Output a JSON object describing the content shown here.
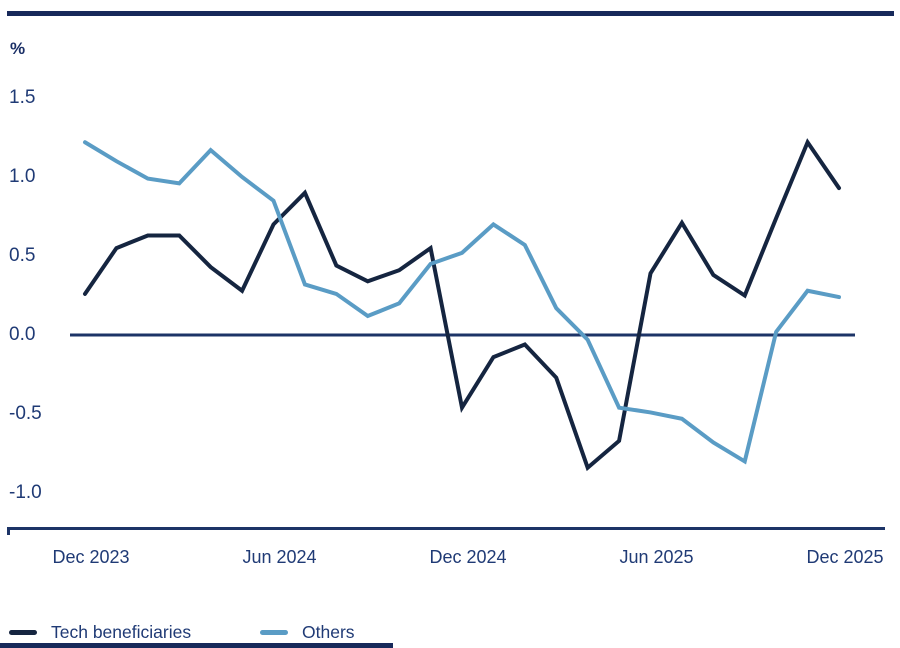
{
  "header": {
    "top_rule_color": "#17295a"
  },
  "chart_data": {
    "type": "line",
    "title": "",
    "y_unit_label": "%",
    "x": [
      "Dec 2023",
      "Jan 2024",
      "Feb 2024",
      "Mar 2024",
      "Apr 2024",
      "May 2024",
      "Jun 2024",
      "Jul 2024",
      "Aug 2024",
      "Sep 2024",
      "Oct 2024",
      "Nov 2024",
      "Dec 2024",
      "Jan 2025",
      "Feb 2025",
      "Mar 2025",
      "Apr 2025",
      "May 2025",
      "Jun 2025",
      "Jul 2025",
      "Aug 2025",
      "Sep 2025",
      "Oct 2025",
      "Nov 2025",
      "Dec 2025"
    ],
    "series": [
      {
        "name": "Tech beneficiaries",
        "color": "#152540",
        "values": [
          0.26,
          0.55,
          0.63,
          0.63,
          0.43,
          0.28,
          0.7,
          0.9,
          0.44,
          0.34,
          0.41,
          0.55,
          -0.46,
          -0.14,
          -0.06,
          -0.27,
          -0.84,
          -0.67,
          0.39,
          0.71,
          0.38,
          0.25,
          0.74,
          1.22,
          0.93
        ]
      },
      {
        "name": "Others",
        "color": "#5a9cc5",
        "values": [
          1.22,
          1.1,
          0.99,
          0.96,
          1.17,
          1.0,
          0.85,
          0.32,
          0.26,
          0.12,
          0.2,
          0.45,
          0.52,
          0.7,
          0.57,
          0.17,
          -0.03,
          -0.46,
          -0.49,
          -0.53,
          -0.68,
          -0.8,
          0.02,
          0.28,
          0.24
        ]
      }
    ],
    "y_ticks": [
      1.5,
      1.0,
      0.5,
      0.0,
      -0.5,
      -1.0
    ],
    "y_tick_labels": [
      "1.5",
      "1.0",
      "0.5",
      "0.0",
      "-0.5",
      "-1.0"
    ],
    "x_tick_labels": [
      "Dec 2023",
      "Jun 2024",
      "Dec 2024",
      "Jun 2025",
      "Dec 2025"
    ],
    "x_tick_indices": [
      0,
      6,
      12,
      18,
      24
    ],
    "ylim": [
      -1.2,
      1.6
    ],
    "grid": "off",
    "zero_line": true,
    "axis_color": "#1d3467",
    "legend_position": "bottom-left"
  },
  "footer": {
    "bar_color": "#17295a"
  }
}
